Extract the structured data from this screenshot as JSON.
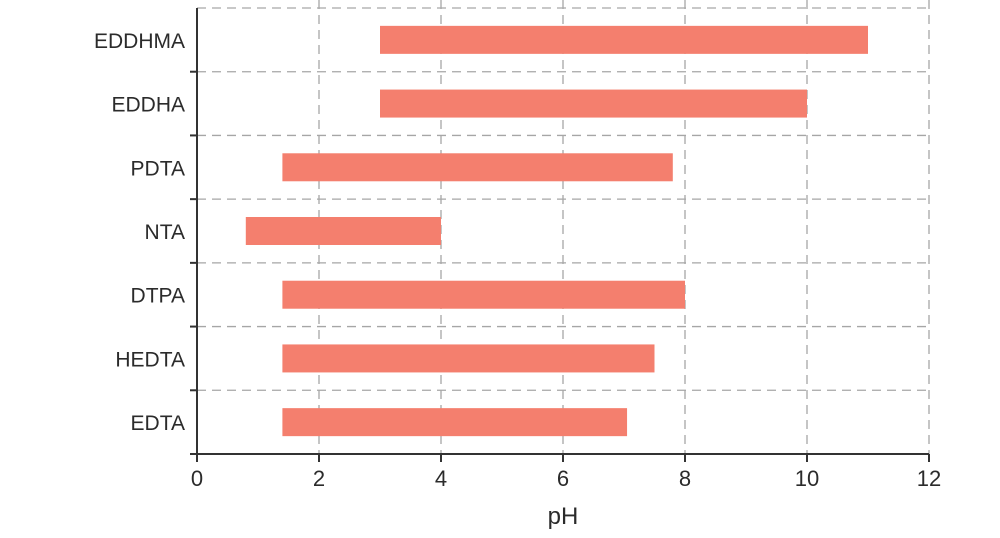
{
  "chart_data": {
    "type": "bar",
    "orientation": "horizontal-range",
    "categories": [
      "EDDHMA",
      "EDDHA",
      "PDTA",
      "NTA",
      "DTPA",
      "HEDTA",
      "EDTA"
    ],
    "ranges": [
      {
        "category": "EDDHMA",
        "start": 3.0,
        "end": 11.0
      },
      {
        "category": "EDDHA",
        "start": 3.0,
        "end": 10.0
      },
      {
        "category": "PDTA",
        "start": 1.4,
        "end": 7.8
      },
      {
        "category": "NTA",
        "start": 0.8,
        "end": 4.0
      },
      {
        "category": "DTPA",
        "start": 1.4,
        "end": 8.0
      },
      {
        "category": "HEDTA",
        "start": 1.4,
        "end": 7.5
      },
      {
        "category": "EDTA",
        "start": 1.4,
        "end": 7.05
      }
    ],
    "xlabel": "pH",
    "ylabel": "",
    "xlim": [
      0,
      12
    ],
    "xticks": [
      "0",
      "2",
      "4",
      "6",
      "8",
      "10",
      "12"
    ],
    "grid": true,
    "bar_color": "#f47f6e"
  }
}
